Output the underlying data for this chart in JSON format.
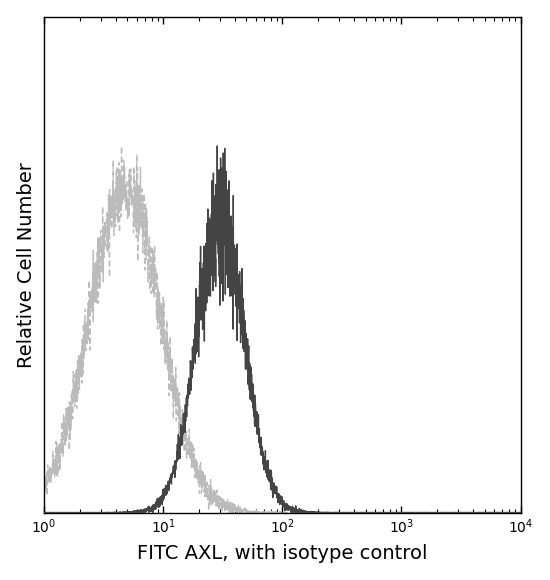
{
  "title": "",
  "xlabel": "FITC AXL, with isotype control",
  "ylabel": "Relative Cell Number",
  "xlim": [
    1,
    10000
  ],
  "ylim": [
    0,
    1.15
  ],
  "isotype_color": "#bbbbbb",
  "antibody_color": "#444444",
  "isotype_peak_log": 0.68,
  "isotype_sigma": 0.3,
  "antibody_peak_log": 1.48,
  "antibody_sigma": 0.2,
  "background_color": "#ffffff"
}
